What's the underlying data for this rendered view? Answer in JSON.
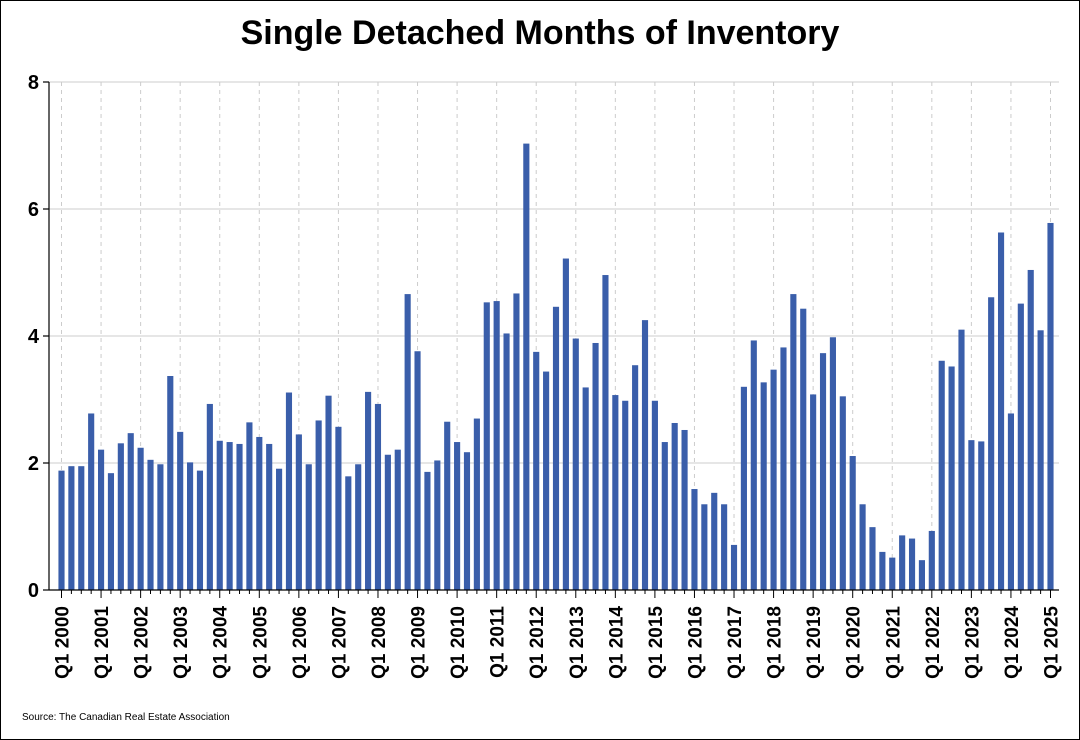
{
  "title": "Single Detached Months of Inventory",
  "source": "Source: The Canadian Real Estate Association",
  "colors": {
    "bar": "#3A5EAA",
    "grid": "#cccccc",
    "axis": "#000000"
  },
  "chart_data": {
    "type": "bar",
    "title": "Single Detached Months of Inventory",
    "xlabel": "",
    "ylabel": "",
    "ylim": [
      0,
      8
    ],
    "yticks": [
      0,
      2,
      4,
      6,
      8
    ],
    "grid": "horizontal solid, vertical dashed at year ticks",
    "legend": "none",
    "categories": [
      "Q1 2000",
      "Q2 2000",
      "Q3 2000",
      "Q4 2000",
      "Q1 2001",
      "Q2 2001",
      "Q3 2001",
      "Q4 2001",
      "Q1 2002",
      "Q2 2002",
      "Q3 2002",
      "Q4 2002",
      "Q1 2003",
      "Q2 2003",
      "Q3 2003",
      "Q4 2003",
      "Q1 2004",
      "Q2 2004",
      "Q3 2004",
      "Q4 2004",
      "Q1 2005",
      "Q2 2005",
      "Q3 2005",
      "Q4 2005",
      "Q1 2006",
      "Q2 2006",
      "Q3 2006",
      "Q4 2006",
      "Q1 2007",
      "Q2 2007",
      "Q3 2007",
      "Q4 2007",
      "Q1 2008",
      "Q2 2008",
      "Q3 2008",
      "Q4 2008",
      "Q1 2009",
      "Q2 2009",
      "Q3 2009",
      "Q4 2009",
      "Q1 2010",
      "Q2 2010",
      "Q3 2010",
      "Q4 2010",
      "Q1 2011",
      "Q2 2011",
      "Q3 2011",
      "Q4 2011",
      "Q1 2012",
      "Q2 2012",
      "Q3 2012",
      "Q4 2012",
      "Q1 2013",
      "Q2 2013",
      "Q3 2013",
      "Q4 2013",
      "Q1 2014",
      "Q2 2014",
      "Q3 2014",
      "Q4 2014",
      "Q1 2015",
      "Q2 2015",
      "Q3 2015",
      "Q4 2015",
      "Q1 2016",
      "Q2 2016",
      "Q3 2016",
      "Q4 2016",
      "Q1 2017",
      "Q2 2017",
      "Q3 2017",
      "Q4 2017",
      "Q1 2018",
      "Q2 2018",
      "Q3 2018",
      "Q4 2018",
      "Q1 2019",
      "Q2 2019",
      "Q3 2019",
      "Q4 2019",
      "Q1 2020",
      "Q2 2020",
      "Q3 2020",
      "Q4 2020",
      "Q1 2021",
      "Q2 2021",
      "Q3 2021",
      "Q4 2021",
      "Q1 2022",
      "Q2 2022",
      "Q3 2022",
      "Q4 2022",
      "Q1 2023",
      "Q2 2023",
      "Q3 2023",
      "Q4 2023",
      "Q1 2024",
      "Q2 2024",
      "Q3 2024",
      "Q4 2024",
      "Q1 2025"
    ],
    "tick_labels": [
      "Q1 2000",
      "Q1 2001",
      "Q1 2002",
      "Q1 2003",
      "Q1 2004",
      "Q1 2005",
      "Q1 2006",
      "Q1 2007",
      "Q1 2008",
      "Q1 2009",
      "Q1 2010",
      "Q1 2011",
      "Q1 2012",
      "Q1 2013",
      "Q1 2014",
      "Q1 2015",
      "Q1 2016",
      "Q1 2017",
      "Q1 2018",
      "Q1 2019",
      "Q1 2020",
      "Q1 2021",
      "Q1 2022",
      "Q1 2023",
      "Q1 2024",
      "Q1 2025"
    ],
    "values": [
      1.88,
      1.95,
      1.95,
      2.78,
      2.21,
      1.84,
      2.31,
      2.47,
      2.24,
      2.05,
      1.98,
      3.37,
      2.49,
      2.01,
      1.88,
      2.93,
      2.35,
      2.33,
      2.3,
      2.64,
      2.41,
      2.3,
      1.91,
      3.11,
      2.45,
      1.98,
      2.67,
      3.06,
      2.57,
      1.79,
      1.98,
      3.12,
      2.93,
      2.13,
      2.21,
      4.66,
      3.76,
      1.86,
      2.04,
      2.65,
      2.33,
      2.17,
      2.7,
      4.53,
      4.55,
      4.04,
      4.67,
      7.03,
      3.75,
      3.44,
      4.46,
      5.22,
      3.96,
      3.19,
      3.89,
      4.96,
      3.07,
      2.98,
      3.54,
      4.25,
      2.98,
      2.33,
      2.63,
      2.52,
      1.59,
      1.35,
      1.53,
      1.35,
      0.71,
      3.2,
      3.93,
      3.27,
      3.47,
      3.82,
      4.66,
      4.43,
      3.08,
      3.73,
      3.98,
      3.05,
      2.11,
      1.35,
      0.99,
      0.6,
      0.51,
      0.86,
      0.81,
      0.47,
      0.93,
      3.61,
      3.52,
      4.1,
      2.36,
      2.34,
      4.61,
      5.63,
      2.78,
      4.51,
      5.04,
      4.09,
      5.78
    ]
  }
}
